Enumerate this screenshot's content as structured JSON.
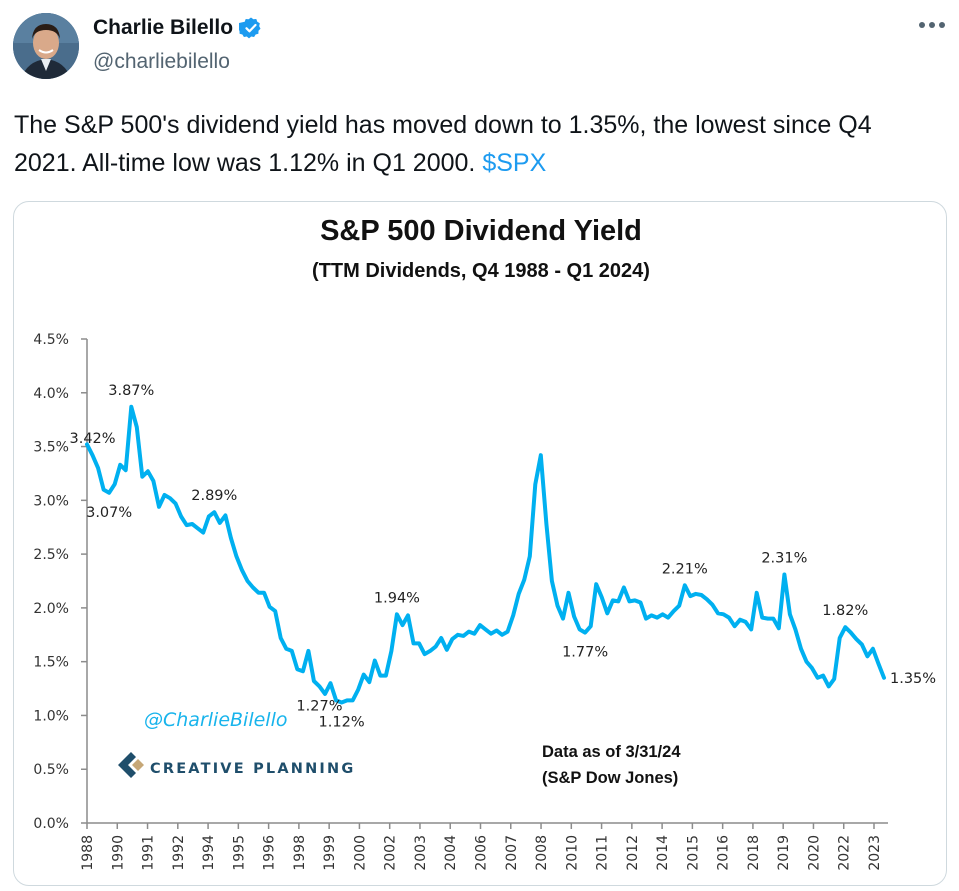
{
  "tweet": {
    "author_name": "Charlie Bilello",
    "handle": "@charliebilello",
    "verified": true,
    "more_icon": "more-horizontal-icon",
    "text_main": "The S&P 500's dividend yield has moved down to 1.35%, the lowest since Q4 2021. All-time low was 1.12% in Q1 2000. ",
    "cashtag": "$SPX",
    "colors": {
      "link": "#1d9bf0",
      "verified": "#1d9bf0",
      "text": "#0f1419",
      "secondary": "#536471"
    }
  },
  "chart_data": {
    "type": "line",
    "title": "S&P 500 Dividend Yield",
    "subtitle": "(TTM Dividends, Q4 1988 - Q1 2024)",
    "xlabel": "",
    "ylabel": "",
    "ylim": [
      0,
      4.5
    ],
    "yticks": [
      "0.0%",
      "0.5%",
      "1.0%",
      "1.5%",
      "2.0%",
      "2.5%",
      "3.0%",
      "3.5%",
      "4.0%",
      "4.5%"
    ],
    "ytick_values": [
      0,
      0.5,
      1.0,
      1.5,
      2.0,
      2.5,
      3.0,
      3.5,
      4.0,
      4.5
    ],
    "xticks": [
      "1988",
      "1990",
      "1991",
      "1992",
      "1994",
      "1995",
      "1996",
      "1998",
      "1999",
      "2000",
      "2002",
      "2003",
      "2004",
      "2006",
      "2007",
      "2008",
      "2010",
      "2011",
      "2012",
      "2014",
      "2015",
      "2016",
      "2018",
      "2019",
      "2020",
      "2022",
      "2023"
    ],
    "grid": false,
    "line_color": "#00b0f0",
    "series": [
      {
        "name": "S&P 500 Dividend Yield (%)",
        "values": [
          3.52,
          3.42,
          3.3,
          3.1,
          3.07,
          3.15,
          3.33,
          3.28,
          3.87,
          3.68,
          3.22,
          3.27,
          3.18,
          2.94,
          3.05,
          3.02,
          2.97,
          2.85,
          2.77,
          2.78,
          2.74,
          2.7,
          2.85,
          2.89,
          2.79,
          2.86,
          2.65,
          2.48,
          2.35,
          2.25,
          2.19,
          2.14,
          2.14,
          2.01,
          1.97,
          1.72,
          1.62,
          1.6,
          1.43,
          1.41,
          1.6,
          1.32,
          1.27,
          1.2,
          1.3,
          1.14,
          1.12,
          1.14,
          1.14,
          1.24,
          1.38,
          1.31,
          1.51,
          1.37,
          1.37,
          1.6,
          1.94,
          1.84,
          1.93,
          1.67,
          1.67,
          1.57,
          1.6,
          1.64,
          1.72,
          1.61,
          1.71,
          1.75,
          1.74,
          1.78,
          1.76,
          1.84,
          1.8,
          1.76,
          1.79,
          1.75,
          1.78,
          1.93,
          2.13,
          2.26,
          2.48,
          3.15,
          3.42,
          2.78,
          2.25,
          2.02,
          1.9,
          2.14,
          1.92,
          1.8,
          1.77,
          1.83,
          2.22,
          2.1,
          1.95,
          2.07,
          2.06,
          2.19,
          2.06,
          2.07,
          2.05,
          1.9,
          1.93,
          1.91,
          1.94,
          1.91,
          1.97,
          2.02,
          2.21,
          2.11,
          2.13,
          2.12,
          2.08,
          2.03,
          1.95,
          1.94,
          1.91,
          1.83,
          1.89,
          1.87,
          1.8,
          2.14,
          1.91,
          1.9,
          1.9,
          1.81,
          2.31,
          1.94,
          1.8,
          1.62,
          1.5,
          1.44,
          1.35,
          1.37,
          1.27,
          1.34,
          1.72,
          1.82,
          1.77,
          1.71,
          1.66,
          1.55,
          1.62,
          1.48,
          1.35
        ]
      }
    ],
    "annotations": [
      {
        "text": "3.87%",
        "value": 3.87,
        "position": "above"
      },
      {
        "text": "3.07%",
        "value": 3.07,
        "position": "below"
      },
      {
        "text": "2.89%",
        "value": 2.89,
        "position": "above"
      },
      {
        "text": "1.12%",
        "value": 1.12,
        "position": "below"
      },
      {
        "text": "1.94%",
        "value": 1.94,
        "position": "above"
      },
      {
        "text": "3.42%",
        "value": 3.42,
        "position": "above"
      },
      {
        "text": "1.77%",
        "value": 1.77,
        "position": "below"
      },
      {
        "text": "2.21%",
        "value": 2.21,
        "position": "above"
      },
      {
        "text": "2.31%",
        "value": 2.31,
        "position": "above"
      },
      {
        "text": "1.27%",
        "value": 1.27,
        "position": "below"
      },
      {
        "text": "1.82%",
        "value": 1.82,
        "position": "above"
      },
      {
        "text": "1.35%",
        "value": 1.35,
        "position": "right"
      }
    ],
    "watermark": "@CharlieBilello",
    "logo_text": "CREATIVE PLANNING",
    "source_line1": "Data as of 3/31/24",
    "source_line2": "(S&P Dow Jones)"
  }
}
